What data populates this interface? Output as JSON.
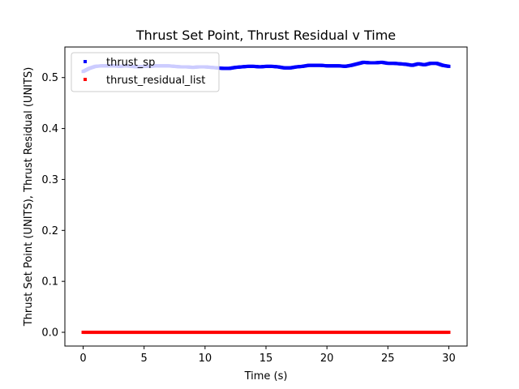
{
  "chart_data": {
    "type": "scatter",
    "title": "Thrust Set Point, Thrust Residual v Time",
    "xlabel": "Time (s)",
    "ylabel": "Thrust Set Point (UNITS), Thrust Residual (UNITS)",
    "xlim": [
      -1.5,
      31.5
    ],
    "ylim": [
      -0.027,
      0.56
    ],
    "xticks": [
      0,
      5,
      10,
      15,
      20,
      25,
      30
    ],
    "xtick_labels": [
      "0",
      "5",
      "10",
      "15",
      "20",
      "25",
      "30"
    ],
    "yticks": [
      0.0,
      0.1,
      0.2,
      0.3,
      0.4,
      0.5
    ],
    "ytick_labels": [
      "0.0",
      "0.1",
      "0.2",
      "0.3",
      "0.4",
      "0.5"
    ],
    "grid": false,
    "legend_position": "upper-left",
    "series": [
      {
        "name": "thrust_sp",
        "color": "#0000ff",
        "marker": "square",
        "x": [
          0,
          0.5,
          1,
          1.5,
          2,
          2.5,
          3,
          3.5,
          4,
          4.5,
          5,
          5.5,
          6,
          6.5,
          7,
          7.5,
          8,
          8.5,
          9,
          9.5,
          10,
          10.5,
          11,
          11.5,
          12,
          12.5,
          13,
          13.5,
          14,
          14.5,
          15,
          15.5,
          16,
          16.5,
          17,
          17.5,
          18,
          18.5,
          19,
          19.5,
          20,
          20.5,
          21,
          21.5,
          22,
          22.5,
          23,
          23.5,
          24,
          24.5,
          25,
          25.5,
          26,
          26.5,
          27,
          27.5,
          28,
          28.5,
          29,
          29.5,
          30
        ],
        "y": [
          0.512,
          0.518,
          0.522,
          0.523,
          0.523,
          0.523,
          0.522,
          0.523,
          0.522,
          0.521,
          0.522,
          0.522,
          0.523,
          0.523,
          0.523,
          0.522,
          0.521,
          0.521,
          0.52,
          0.521,
          0.521,
          0.52,
          0.519,
          0.518,
          0.518,
          0.52,
          0.521,
          0.522,
          0.522,
          0.521,
          0.522,
          0.522,
          0.521,
          0.519,
          0.519,
          0.521,
          0.522,
          0.524,
          0.524,
          0.524,
          0.523,
          0.523,
          0.523,
          0.522,
          0.524,
          0.527,
          0.53,
          0.529,
          0.529,
          0.53,
          0.528,
          0.528,
          0.527,
          0.526,
          0.524,
          0.527,
          0.525,
          0.528,
          0.528,
          0.524,
          0.522
        ]
      },
      {
        "name": "thrust_residual_list",
        "color": "#ff0000",
        "marker": "square",
        "x": [
          0,
          0.5,
          1,
          1.5,
          2,
          2.5,
          3,
          3.5,
          4,
          4.5,
          5,
          5.5,
          6,
          6.5,
          7,
          7.5,
          8,
          8.5,
          9,
          9.5,
          10,
          10.5,
          11,
          11.5,
          12,
          12.5,
          13,
          13.5,
          14,
          14.5,
          15,
          15.5,
          16,
          16.5,
          17,
          17.5,
          18,
          18.5,
          19,
          19.5,
          20,
          20.5,
          21,
          21.5,
          22,
          22.5,
          23,
          23.5,
          24,
          24.5,
          25,
          25.5,
          26,
          26.5,
          27,
          27.5,
          28,
          28.5,
          29,
          29.5,
          30
        ],
        "y": [
          0.0,
          0.0,
          0.0,
          0.0,
          0.0,
          0.0,
          0.0,
          0.0,
          0.0,
          0.0,
          0.0,
          0.0,
          0.0,
          0.0,
          0.0,
          0.0,
          0.0,
          0.0,
          0.0,
          0.0,
          0.0,
          0.0,
          0.0,
          0.0,
          0.0,
          0.0,
          0.0,
          0.0,
          0.0,
          0.0,
          0.0,
          0.0,
          0.0,
          0.0,
          0.0,
          0.0,
          0.0,
          0.0,
          0.0,
          0.0,
          0.0,
          0.0,
          0.0,
          0.0,
          0.0,
          0.0,
          0.0,
          0.0,
          0.0,
          0.0,
          0.0,
          0.0,
          0.0,
          0.0,
          0.0,
          0.0,
          0.0,
          0.0,
          0.0,
          0.0,
          0.0
        ]
      }
    ]
  }
}
